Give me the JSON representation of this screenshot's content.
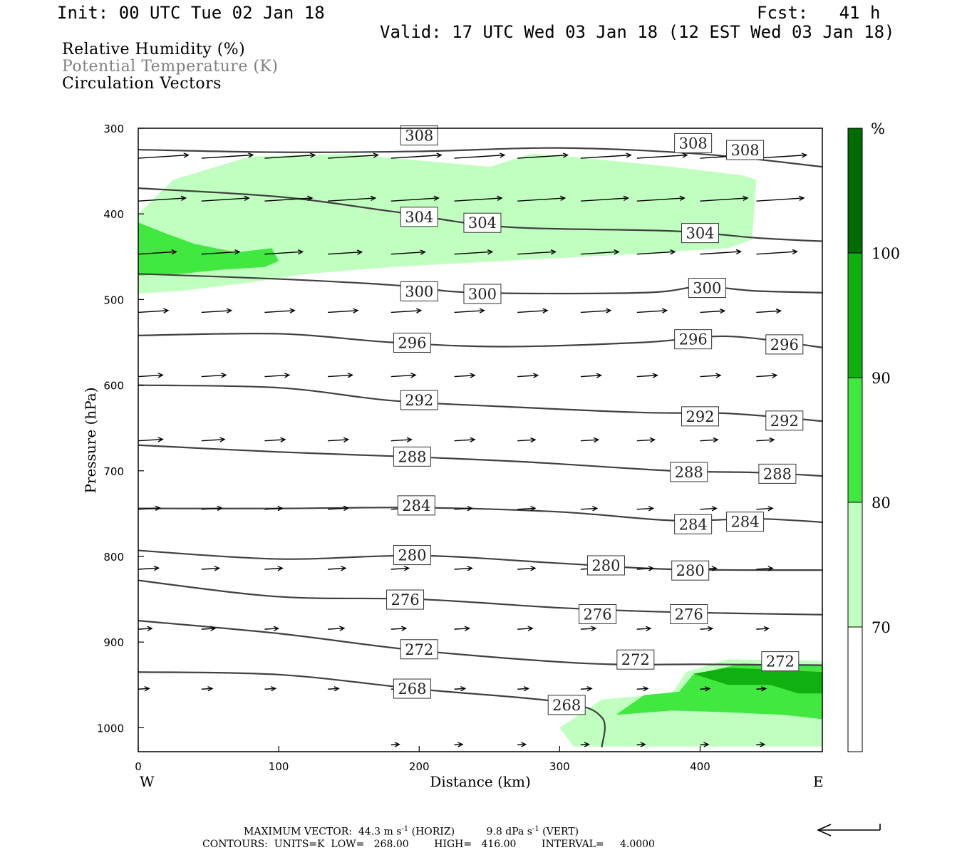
{
  "header": {
    "init": "Init: 00 UTC Tue 02 Jan 18",
    "fcst": "Fcst:   41 h",
    "valid": "Valid: 17 UTC Wed 03 Jan 18 (12 EST Wed 03 Jan 18)"
  },
  "legend": {
    "line1": "Relative Humidity (%)",
    "line2": "Potential Temperature (K)",
    "line3": "Circulation Vectors",
    "line2_color": "#808080"
  },
  "footer": {
    "max_vector_prefix": "MAXIMUM VECTOR:  44.3 m s",
    "max_vector_sup1": "-1",
    "max_vector_mid": " (HORIZ)          9.8 dPa s",
    "max_vector_sup2": "-1",
    "max_vector_suffix": " (VERT)",
    "contours": "CONTOURS:  UNITS=K  LOW=   268.00        HIGH=   416.00        INTERVAL=     4.0000"
  },
  "colors": {
    "rh70": "#c0ffc0",
    "rh80": "#40e840",
    "rh90": "#10b010",
    "rh100": "#006c00",
    "contour": "#404040"
  },
  "chart_data": {
    "type": "cross-section",
    "xlabel": "Distance (km)",
    "ylabel": "Pressure (hPa)",
    "xlim": [
      0,
      487
    ],
    "ylim": [
      1028,
      300
    ],
    "x_ticks": [
      0,
      100,
      200,
      300,
      400
    ],
    "y_ticks": [
      300,
      400,
      500,
      600,
      700,
      800,
      900,
      1000
    ],
    "x_end_labels": {
      "left": "W",
      "right": "E"
    },
    "colorbar": {
      "unit": "%",
      "levels": [
        70,
        80,
        90,
        100
      ],
      "colors": [
        "#ffffff",
        "#c0ffc0",
        "#40e840",
        "#10b010",
        "#006c00"
      ]
    },
    "theta_contours": [
      {
        "value": 308,
        "points": [
          [
            0,
            325
          ],
          [
            100,
            328
          ],
          [
            200,
            327
          ],
          [
            300,
            323
          ],
          [
            400,
            330
          ],
          [
            487,
            345
          ]
        ],
        "labels": [
          [
            200,
            308
          ],
          [
            395,
            317
          ],
          [
            432,
            325
          ]
        ]
      },
      {
        "value": 304,
        "points": [
          [
            0,
            370
          ],
          [
            100,
            380
          ],
          [
            180,
            397
          ],
          [
            260,
            415
          ],
          [
            380,
            420
          ],
          [
            440,
            428
          ],
          [
            487,
            432
          ]
        ],
        "labels": [
          [
            200,
            403
          ],
          [
            245,
            410
          ],
          [
            400,
            422
          ]
        ]
      },
      {
        "value": 300,
        "points": [
          [
            0,
            470
          ],
          [
            100,
            476
          ],
          [
            180,
            483
          ],
          [
            240,
            492
          ],
          [
            360,
            492
          ],
          [
            400,
            485
          ],
          [
            440,
            490
          ],
          [
            487,
            492
          ]
        ],
        "labels": [
          [
            200,
            490
          ],
          [
            245,
            493
          ],
          [
            405,
            486
          ]
        ]
      },
      {
        "value": 296,
        "points": [
          [
            0,
            542
          ],
          [
            100,
            540
          ],
          [
            180,
            550
          ],
          [
            260,
            555
          ],
          [
            360,
            550
          ],
          [
            420,
            543
          ],
          [
            487,
            556
          ]
        ],
        "labels": [
          [
            195,
            550
          ],
          [
            395,
            546
          ],
          [
            460,
            552
          ]
        ]
      },
      {
        "value": 292,
        "points": [
          [
            0,
            600
          ],
          [
            100,
            603
          ],
          [
            180,
            618
          ],
          [
            260,
            625
          ],
          [
            360,
            632
          ],
          [
            420,
            633
          ],
          [
            487,
            642
          ]
        ],
        "labels": [
          [
            200,
            617
          ],
          [
            400,
            636
          ],
          [
            460,
            641
          ]
        ]
      },
      {
        "value": 288,
        "points": [
          [
            0,
            670
          ],
          [
            100,
            678
          ],
          [
            200,
            684
          ],
          [
            280,
            690
          ],
          [
            380,
            700
          ],
          [
            440,
            702
          ],
          [
            487,
            706
          ]
        ],
        "labels": [
          [
            195,
            683
          ],
          [
            392,
            701
          ],
          [
            455,
            703
          ]
        ]
      },
      {
        "value": 284,
        "points": [
          [
            0,
            744
          ],
          [
            100,
            744
          ],
          [
            200,
            743
          ],
          [
            300,
            748
          ],
          [
            380,
            758
          ],
          [
            440,
            756
          ],
          [
            487,
            760
          ]
        ],
        "labels": [
          [
            198,
            740
          ],
          [
            395,
            762
          ],
          [
            432,
            759
          ]
        ]
      },
      {
        "value": 280,
        "points": [
          [
            0,
            793
          ],
          [
            100,
            803
          ],
          [
            200,
            799
          ],
          [
            300,
            808
          ],
          [
            380,
            815
          ],
          [
            487,
            816
          ]
        ],
        "labels": [
          [
            195,
            798
          ],
          [
            333,
            810
          ],
          [
            393,
            816
          ]
        ]
      },
      {
        "value": 276,
        "points": [
          [
            0,
            828
          ],
          [
            100,
            847
          ],
          [
            200,
            850
          ],
          [
            300,
            860
          ],
          [
            380,
            865
          ],
          [
            487,
            868
          ]
        ],
        "labels": [
          [
            190,
            850
          ],
          [
            327,
            867
          ],
          [
            392,
            867
          ]
        ]
      },
      {
        "value": 272,
        "points": [
          [
            0,
            875
          ],
          [
            100,
            890
          ],
          [
            200,
            910
          ],
          [
            320,
            925
          ],
          [
            400,
            926
          ],
          [
            487,
            927
          ]
        ],
        "labels": [
          [
            200,
            908
          ],
          [
            354,
            920
          ],
          [
            457,
            922
          ]
        ]
      },
      {
        "value": 268,
        "points": [
          [
            0,
            935
          ],
          [
            100,
            938
          ],
          [
            200,
            955
          ],
          [
            300,
            970
          ],
          [
            330,
            988
          ],
          [
            330,
            1023
          ]
        ],
        "labels": [
          [
            195,
            954
          ],
          [
            305,
            973
          ]
        ]
      }
    ],
    "rh_regions": [
      {
        "level": 70,
        "polygon": [
          [
            0,
            400
          ],
          [
            25,
            360
          ],
          [
            80,
            333
          ],
          [
            150,
            330
          ],
          [
            250,
            345
          ],
          [
            280,
            330
          ],
          [
            300,
            332
          ],
          [
            320,
            335
          ],
          [
            380,
            345
          ],
          [
            430,
            355
          ],
          [
            440,
            360
          ],
          [
            437,
            430
          ],
          [
            420,
            440
          ],
          [
            340,
            448
          ],
          [
            260,
            455
          ],
          [
            180,
            462
          ],
          [
            120,
            470
          ],
          [
            80,
            480
          ],
          [
            30,
            490
          ],
          [
            0,
            493
          ]
        ]
      },
      {
        "level": 80,
        "polygon": [
          [
            0,
            410
          ],
          [
            20,
            423
          ],
          [
            40,
            435
          ],
          [
            70,
            445
          ],
          [
            95,
            440
          ],
          [
            100,
            455
          ],
          [
            90,
            462
          ],
          [
            60,
            465
          ],
          [
            30,
            470
          ],
          [
            0,
            472
          ]
        ]
      },
      {
        "level": 70,
        "polygon": [
          [
            300,
            1000
          ],
          [
            330,
            967
          ],
          [
            380,
            960
          ],
          [
            390,
            935
          ],
          [
            420,
            920
          ],
          [
            487,
            922
          ],
          [
            487,
            1022
          ],
          [
            310,
            1022
          ]
        ]
      },
      {
        "level": 80,
        "polygon": [
          [
            340,
            985
          ],
          [
            360,
            962
          ],
          [
            385,
            958
          ],
          [
            395,
            938
          ],
          [
            430,
            925
          ],
          [
            487,
            928
          ],
          [
            487,
            990
          ],
          [
            460,
            985
          ],
          [
            420,
            982
          ],
          [
            380,
            980
          ]
        ]
      },
      {
        "level": 90,
        "polygon": [
          [
            395,
            937
          ],
          [
            420,
            930
          ],
          [
            450,
            932
          ],
          [
            487,
            935
          ],
          [
            487,
            960
          ],
          [
            470,
            960
          ],
          [
            450,
            950
          ],
          [
            420,
            950
          ]
        ]
      }
    ],
    "vectors": [
      {
        "p": 335,
        "u": [
          [
            0,
            37
          ],
          [
            45,
            38
          ],
          [
            90,
            37
          ],
          [
            135,
            37
          ],
          [
            180,
            37
          ],
          [
            225,
            37
          ],
          [
            270,
            37
          ],
          [
            315,
            37
          ],
          [
            355,
            37
          ],
          [
            400,
            37
          ],
          [
            440,
            37
          ]
        ]
      },
      {
        "p": 385,
        "u": [
          [
            0,
            35
          ],
          [
            45,
            35
          ],
          [
            90,
            35
          ],
          [
            135,
            35
          ],
          [
            180,
            35
          ],
          [
            225,
            35
          ],
          [
            270,
            35
          ],
          [
            315,
            35
          ],
          [
            355,
            35
          ],
          [
            400,
            35
          ],
          [
            440,
            35
          ]
        ]
      },
      {
        "p": 447,
        "u": [
          [
            0,
            28
          ],
          [
            45,
            28
          ],
          [
            90,
            28
          ],
          [
            135,
            25
          ],
          [
            180,
            25
          ],
          [
            225,
            28
          ],
          [
            270,
            28
          ],
          [
            315,
            28
          ],
          [
            355,
            28
          ],
          [
            400,
            30
          ],
          [
            440,
            30
          ]
        ]
      },
      {
        "p": 515,
        "u": [
          [
            0,
            22
          ],
          [
            45,
            22
          ],
          [
            90,
            22
          ],
          [
            135,
            22
          ],
          [
            180,
            22
          ],
          [
            225,
            22
          ],
          [
            270,
            22
          ],
          [
            315,
            22
          ],
          [
            355,
            22
          ],
          [
            400,
            18
          ],
          [
            440,
            18
          ]
        ]
      },
      {
        "p": 590,
        "u": [
          [
            0,
            18
          ],
          [
            45,
            18
          ],
          [
            90,
            18
          ],
          [
            135,
            18
          ],
          [
            180,
            18
          ],
          [
            225,
            15
          ],
          [
            270,
            15
          ],
          [
            315,
            15
          ],
          [
            355,
            15
          ],
          [
            400,
            15
          ],
          [
            440,
            15
          ]
        ]
      },
      {
        "p": 665,
        "u": [
          [
            0,
            18
          ],
          [
            45,
            17
          ],
          [
            90,
            15
          ],
          [
            135,
            15
          ],
          [
            180,
            15
          ],
          [
            225,
            15
          ],
          [
            270,
            13
          ],
          [
            315,
            13
          ],
          [
            355,
            13
          ],
          [
            400,
            13
          ],
          [
            440,
            13
          ]
        ]
      },
      {
        "p": 745,
        "u": [
          [
            0,
            16
          ],
          [
            45,
            15
          ],
          [
            90,
            13
          ],
          [
            135,
            15
          ],
          [
            180,
            13
          ],
          [
            225,
            13
          ],
          [
            270,
            13
          ],
          [
            315,
            12
          ],
          [
            355,
            12
          ],
          [
            400,
            12
          ],
          [
            440,
            12
          ]
        ]
      },
      {
        "p": 815,
        "u": [
          [
            0,
            15
          ],
          [
            45,
            13
          ],
          [
            90,
            13
          ],
          [
            135,
            13
          ],
          [
            180,
            13
          ],
          [
            225,
            13
          ],
          [
            270,
            13
          ],
          [
            315,
            12
          ],
          [
            355,
            12
          ],
          [
            400,
            12
          ],
          [
            440,
            12
          ]
        ]
      },
      {
        "p": 885,
        "u": [
          [
            0,
            10
          ],
          [
            45,
            10
          ],
          [
            90,
            10
          ],
          [
            135,
            12
          ],
          [
            180,
            11
          ],
          [
            225,
            11
          ],
          [
            270,
            11
          ],
          [
            315,
            11
          ],
          [
            355,
            10
          ],
          [
            400,
            9
          ],
          [
            440,
            9
          ]
        ]
      },
      {
        "p": 955,
        "u": [
          [
            0,
            8
          ],
          [
            45,
            8
          ],
          [
            90,
            8
          ],
          [
            135,
            8
          ],
          [
            180,
            8
          ],
          [
            225,
            8
          ],
          [
            270,
            8
          ],
          [
            315,
            8
          ],
          [
            355,
            8
          ],
          [
            400,
            7
          ],
          [
            440,
            7
          ]
        ]
      },
      {
        "p": 1020,
        "u": [
          [
            180,
            6
          ],
          [
            225,
            6
          ],
          [
            270,
            6
          ],
          [
            315,
            6
          ],
          [
            355,
            6
          ],
          [
            400,
            6
          ],
          [
            440,
            6
          ]
        ]
      }
    ]
  }
}
